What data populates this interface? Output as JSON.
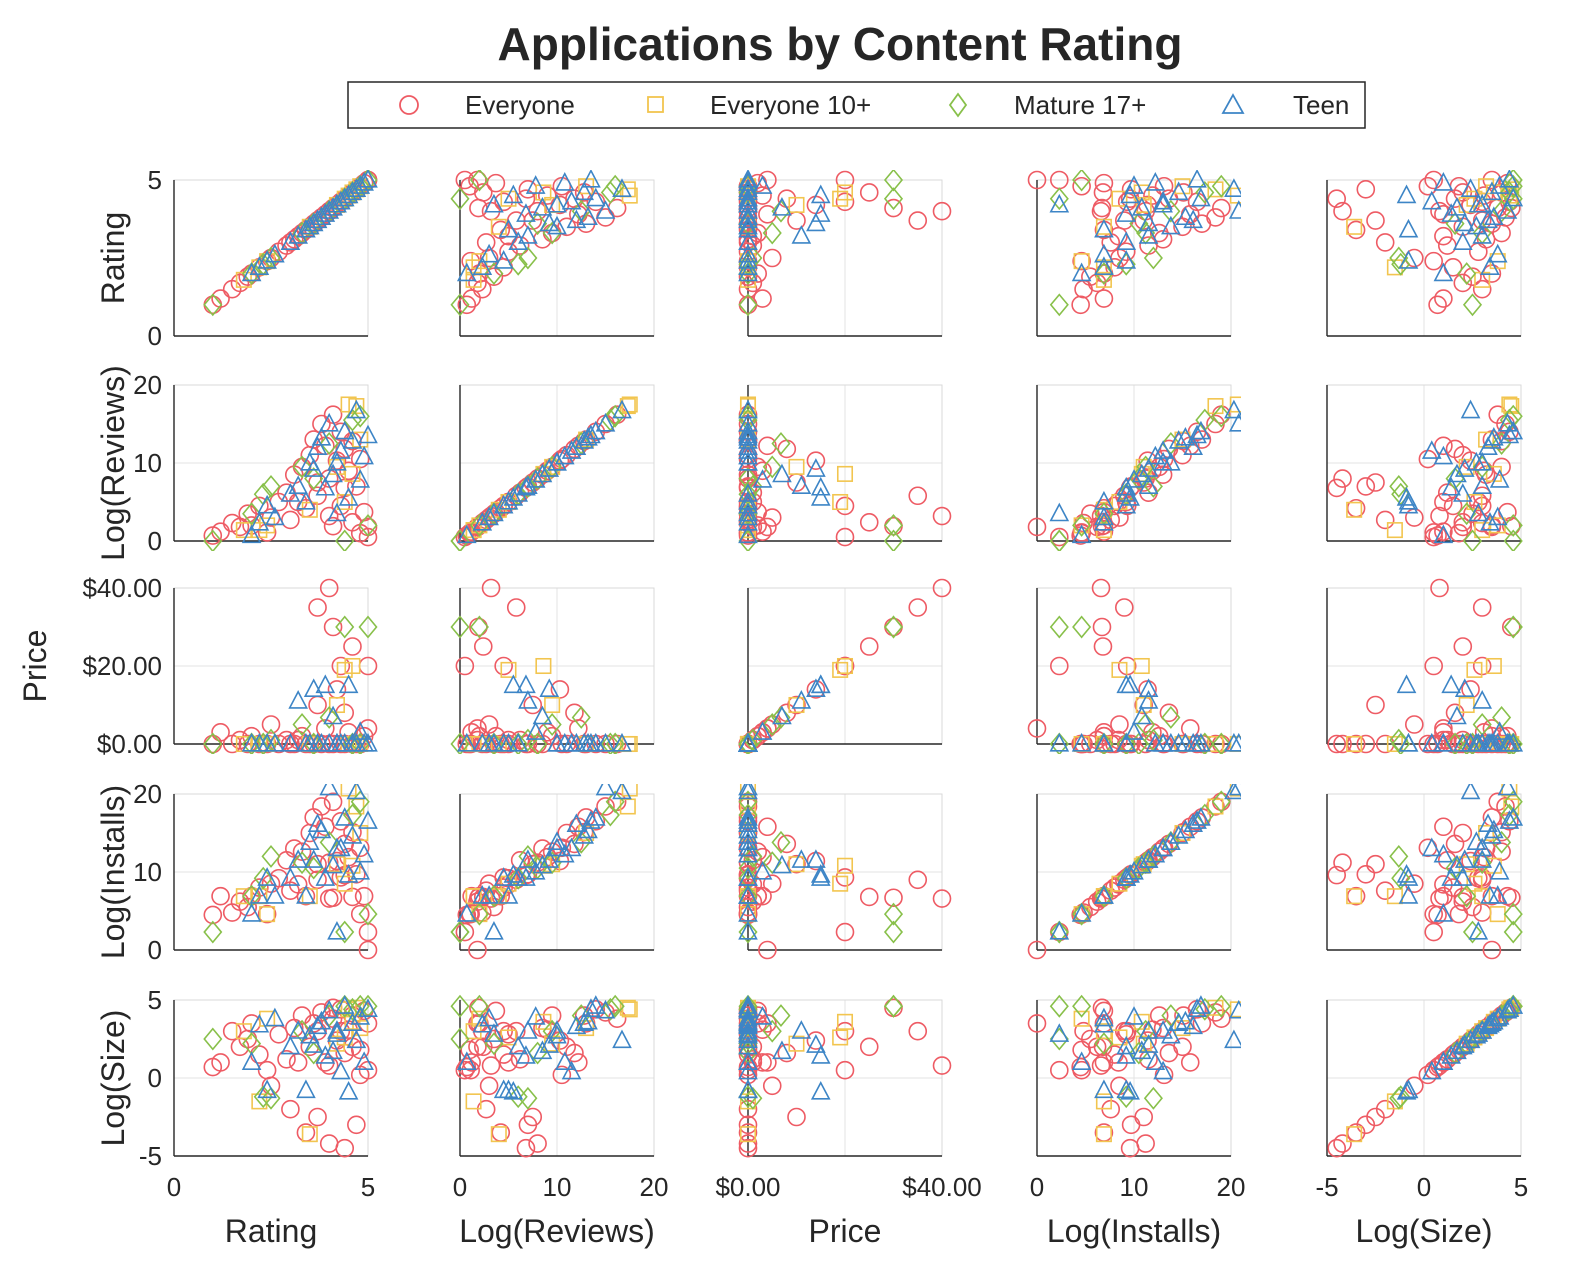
{
  "figure": {
    "title": "Applications by Content Rating",
    "legend": {
      "placement": "top-center",
      "entries": [
        {
          "name": "Everyone",
          "marker": "circle",
          "color": "#ee5b64"
        },
        {
          "name": "Everyone 10+",
          "marker": "square",
          "color": "#f2c54f"
        },
        {
          "name": "Mature 17+",
          "marker": "diamond",
          "color": "#88c04a"
        },
        {
          "name": "Teen",
          "marker": "triangle",
          "color": "#3d85c6"
        }
      ]
    }
  },
  "chart_data": {
    "type": "scatter",
    "subtype": "scatter-matrix",
    "title": "Applications by Content Rating",
    "grid": true,
    "variables": [
      {
        "name": "Rating",
        "range": [
          0,
          5
        ],
        "ticks": [
          0,
          5
        ],
        "tick_labels": [
          "0",
          "5"
        ]
      },
      {
        "name": "Log(Reviews)",
        "range": [
          0,
          20
        ],
        "ticks": [
          0,
          10,
          20
        ],
        "tick_labels": [
          "0",
          "10",
          "20"
        ]
      },
      {
        "name": "Price",
        "range": [
          0,
          40
        ],
        "ticks": [
          0,
          20,
          40
        ],
        "tick_labels": [
          "$0.00",
          "$20.00",
          "$40.00"
        ],
        "x_ticks": [
          0,
          40
        ],
        "x_tick_labels": [
          "$0.00",
          "$40.00"
        ]
      },
      {
        "name": "Log(Installs)",
        "range": [
          0,
          20
        ],
        "ticks": [
          0,
          10,
          20
        ],
        "tick_labels": [
          "0",
          "10",
          "20"
        ]
      },
      {
        "name": "Log(Size)",
        "range": [
          -5,
          5
        ],
        "ticks": [
          -5,
          0,
          5
        ],
        "tick_labels": [
          "-5",
          "0",
          "5"
        ]
      }
    ],
    "series": [
      {
        "name": "Everyone",
        "points": [
          [
            1.0,
            0.7,
            0.0,
            4.5,
            0.7
          ],
          [
            1.2,
            1.2,
            3.0,
            6.9,
            1.0
          ],
          [
            1.5,
            2.3,
            0.0,
            4.8,
            3.0
          ],
          [
            1.7,
            1.8,
            1.0,
            6.2,
            2.0
          ],
          [
            1.9,
            3.5,
            0.0,
            5.5,
            2.5
          ],
          [
            2.0,
            2.0,
            2.0,
            6.9,
            3.5
          ],
          [
            2.2,
            4.5,
            0.0,
            8.0,
            1.5
          ],
          [
            2.4,
            1.1,
            0.0,
            4.6,
            0.5
          ],
          [
            2.5,
            3.0,
            5.0,
            8.5,
            -0.5
          ],
          [
            2.7,
            5.0,
            0.0,
            9.2,
            2.8
          ],
          [
            2.9,
            6.2,
            1.0,
            11.5,
            1.2
          ],
          [
            3.0,
            2.7,
            0.0,
            7.6,
            -2.0
          ],
          [
            3.1,
            8.5,
            0.0,
            13.0,
            3.2
          ],
          [
            3.3,
            9.5,
            2.0,
            12.6,
            4.0
          ],
          [
            3.4,
            4.2,
            0.0,
            6.9,
            -3.5
          ],
          [
            3.5,
            11.0,
            0.0,
            15.0,
            2.0
          ],
          [
            3.6,
            13.0,
            0.0,
            17.0,
            3.5
          ],
          [
            3.7,
            7.5,
            10.0,
            11.0,
            -2.5
          ],
          [
            3.7,
            5.8,
            35.0,
            9.0,
            3.0
          ],
          [
            3.8,
            15.0,
            0.0,
            18.4,
            4.2
          ],
          [
            3.9,
            12.2,
            4.0,
            15.8,
            1.0
          ],
          [
            4.0,
            3.2,
            40.0,
            6.6,
            0.8
          ],
          [
            4.0,
            8.0,
            0.0,
            11.2,
            -4.2
          ],
          [
            4.1,
            16.2,
            0.0,
            19.0,
            3.8
          ],
          [
            4.1,
            1.9,
            30.0,
            6.7,
            4.5
          ],
          [
            4.2,
            10.3,
            14.0,
            11.4,
            2.4
          ],
          [
            4.3,
            14.0,
            0.0,
            16.5,
            4.4
          ],
          [
            4.3,
            4.5,
            20.0,
            9.3,
            3.0
          ],
          [
            4.4,
            6.8,
            0.0,
            9.6,
            -4.5
          ],
          [
            4.4,
            11.8,
            8.0,
            13.6,
            1.6
          ],
          [
            4.5,
            9.0,
            3.0,
            11.9,
            3.1
          ],
          [
            4.6,
            12.8,
            0.0,
            15.1,
            4.0
          ],
          [
            4.6,
            2.4,
            25.0,
            6.8,
            2.0
          ],
          [
            4.7,
            7.0,
            0.0,
            9.7,
            -3.0
          ],
          [
            4.8,
            10.5,
            0.0,
            13.1,
            0.2
          ],
          [
            4.8,
            1.0,
            0.0,
            4.6,
            1.8
          ],
          [
            4.9,
            3.7,
            2.0,
            6.9,
            4.3
          ],
          [
            5.0,
            0.5,
            20.0,
            2.3,
            0.5
          ],
          [
            5.0,
            1.8,
            4.0,
            0.0,
            3.5
          ],
          [
            3.2,
            5.0,
            1.0,
            8.4,
            1.0
          ]
        ]
      },
      {
        "name": "Everyone 10+",
        "points": [
          [
            1.8,
            1.4,
            0.0,
            6.9,
            3.0
          ],
          [
            2.2,
            1.4,
            0.0,
            6.9,
            -1.5
          ],
          [
            2.4,
            2.0,
            0.0,
            4.6,
            3.8
          ],
          [
            3.5,
            4.0,
            0.0,
            6.9,
            -3.6
          ],
          [
            4.2,
            9.5,
            10.0,
            11.0,
            2.2
          ],
          [
            4.5,
            17.5,
            0.0,
            20.7,
            4.4
          ],
          [
            4.6,
            8.6,
            20.0,
            10.8,
            3.6
          ],
          [
            4.7,
            17.3,
            0.0,
            18.4,
            4.5
          ],
          [
            4.8,
            13.0,
            0.0,
            15.0,
            3.2
          ],
          [
            4.4,
            5.0,
            19.0,
            8.5,
            2.6
          ]
        ]
      },
      {
        "name": "Mature 17+",
        "points": [
          [
            1.0,
            0.0,
            0.0,
            2.3,
            2.5
          ],
          [
            2.0,
            3.5,
            0.0,
            6.9,
            2.2
          ],
          [
            2.3,
            6.0,
            0.0,
            9.2,
            -1.2
          ],
          [
            2.5,
            7.0,
            1.0,
            12.0,
            -1.3
          ],
          [
            3.3,
            9.5,
            5.0,
            11.2,
            3.0
          ],
          [
            4.0,
            12.5,
            6.8,
            13.8,
            4.0
          ],
          [
            4.4,
            0.0,
            30.0,
            2.3,
            4.6
          ],
          [
            4.6,
            15.5,
            0.0,
            17.3,
            4.4
          ],
          [
            4.8,
            16.0,
            0.0,
            19.0,
            4.6
          ],
          [
            5.0,
            2.0,
            30.0,
            4.6,
            4.6
          ],
          [
            3.6,
            8.0,
            0.0,
            10.5,
            1.6
          ]
        ]
      },
      {
        "name": "Teen",
        "points": [
          [
            2.0,
            0.7,
            0.0,
            4.6,
            1.0
          ],
          [
            2.2,
            2.3,
            0.0,
            6.9,
            3.4
          ],
          [
            2.4,
            4.5,
            0.0,
            9.2,
            -0.8
          ],
          [
            2.6,
            3.0,
            0.0,
            6.9,
            3.8
          ],
          [
            3.0,
            6.0,
            0.0,
            9.2,
            2.0
          ],
          [
            3.2,
            7.0,
            11.0,
            11.5,
            3.0
          ],
          [
            3.4,
            5.0,
            0.0,
            6.9,
            -0.8
          ],
          [
            3.5,
            10.0,
            0.0,
            13.8,
            2.7
          ],
          [
            3.6,
            9.2,
            14.0,
            11.5,
            2.1
          ],
          [
            3.7,
            12.0,
            0.0,
            16.1,
            3.3
          ],
          [
            3.9,
            6.8,
            15.0,
            9.2,
            1.4
          ],
          [
            4.0,
            15.0,
            0.0,
            20.8,
            4.3
          ],
          [
            4.1,
            8.5,
            7.0,
            10.8,
            1.7
          ],
          [
            4.2,
            3.5,
            0.0,
            2.3,
            2.8
          ],
          [
            4.3,
            11.5,
            0.0,
            13.0,
            0.4
          ],
          [
            4.4,
            14.0,
            0.0,
            16.9,
            4.6
          ],
          [
            4.5,
            5.5,
            15.0,
            9.6,
            -0.9
          ],
          [
            4.6,
            12.8,
            0.0,
            14.6,
            3.5
          ],
          [
            4.7,
            16.7,
            0.0,
            20.3,
            2.4
          ],
          [
            4.8,
            7.8,
            3.0,
            10.0,
            3.9
          ],
          [
            4.9,
            10.8,
            0.0,
            12.2,
            1.0
          ],
          [
            5.0,
            13.5,
            0.0,
            16.5,
            4.4
          ],
          [
            4.2,
            10.0,
            0.0,
            13.0,
            3.0
          ],
          [
            3.8,
            13.2,
            0.0,
            15.3,
            3.6
          ]
        ]
      }
    ]
  }
}
